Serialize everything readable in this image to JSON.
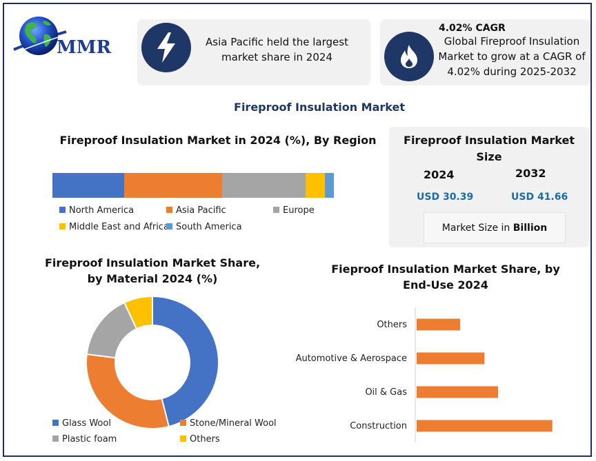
{
  "brand": {
    "logo_text": "MMR"
  },
  "cards": [
    {
      "icon": "lightning-icon",
      "text": "Asia Pacific held the largest market share in 2024"
    },
    {
      "icon": "flame-icon",
      "title": "4.02% CAGR",
      "text": "Global Fireproof Insulation Market to grow at a CAGR of 4.02% during 2025-2032"
    }
  ],
  "main_title": "Fireproof Insulation Market",
  "market_size": {
    "title": "Fireproof Insulation Market Size",
    "year_a": "2024",
    "year_b": "2032",
    "value_a": "USD 30.39",
    "value_b": "USD 41.66",
    "note_prefix": "Market Size in ",
    "note_unit": "Billion"
  },
  "colors": {
    "blue": "#4472c4",
    "orange": "#ed7d31",
    "gray": "#a5a5a5",
    "yellow": "#ffc000",
    "lightblue": "#5b9bd5",
    "navy": "#1e3766"
  },
  "chart_data": [
    {
      "type": "bar",
      "orientation": "horizontal-stacked",
      "title": "Fireproof Insulation Market in 2024 (%), By Region",
      "series": [
        {
          "name": "North America",
          "value": 24
        },
        {
          "name": "Asia Pacific",
          "value": 33
        },
        {
          "name": "Europe",
          "value": 28
        },
        {
          "name": "Middle East and Africa",
          "value": 6.5
        },
        {
          "name": "South America",
          "value": 3
        }
      ],
      "legend_position": "bottom"
    },
    {
      "type": "pie",
      "variant": "donut",
      "title": "Fireproof Insulation Market Share, by Material 2024 (%)",
      "slices": [
        {
          "label": "Glass Wool",
          "value": 46
        },
        {
          "label": "Stone/Mineral Wool",
          "value": 31
        },
        {
          "label": "Plastic foam",
          "value": 16
        },
        {
          "label": "Others",
          "value": 7
        }
      ],
      "legend_position": "bottom"
    },
    {
      "type": "bar",
      "orientation": "horizontal",
      "title": "Fieproof Insulation Market Share, by End-Use 2024",
      "categories": [
        "Others",
        "Automotive & Aerospace",
        "Oil & Gas",
        "Construction"
      ],
      "values": [
        16,
        25,
        30,
        50
      ],
      "xlim": [
        0,
        60
      ]
    }
  ]
}
